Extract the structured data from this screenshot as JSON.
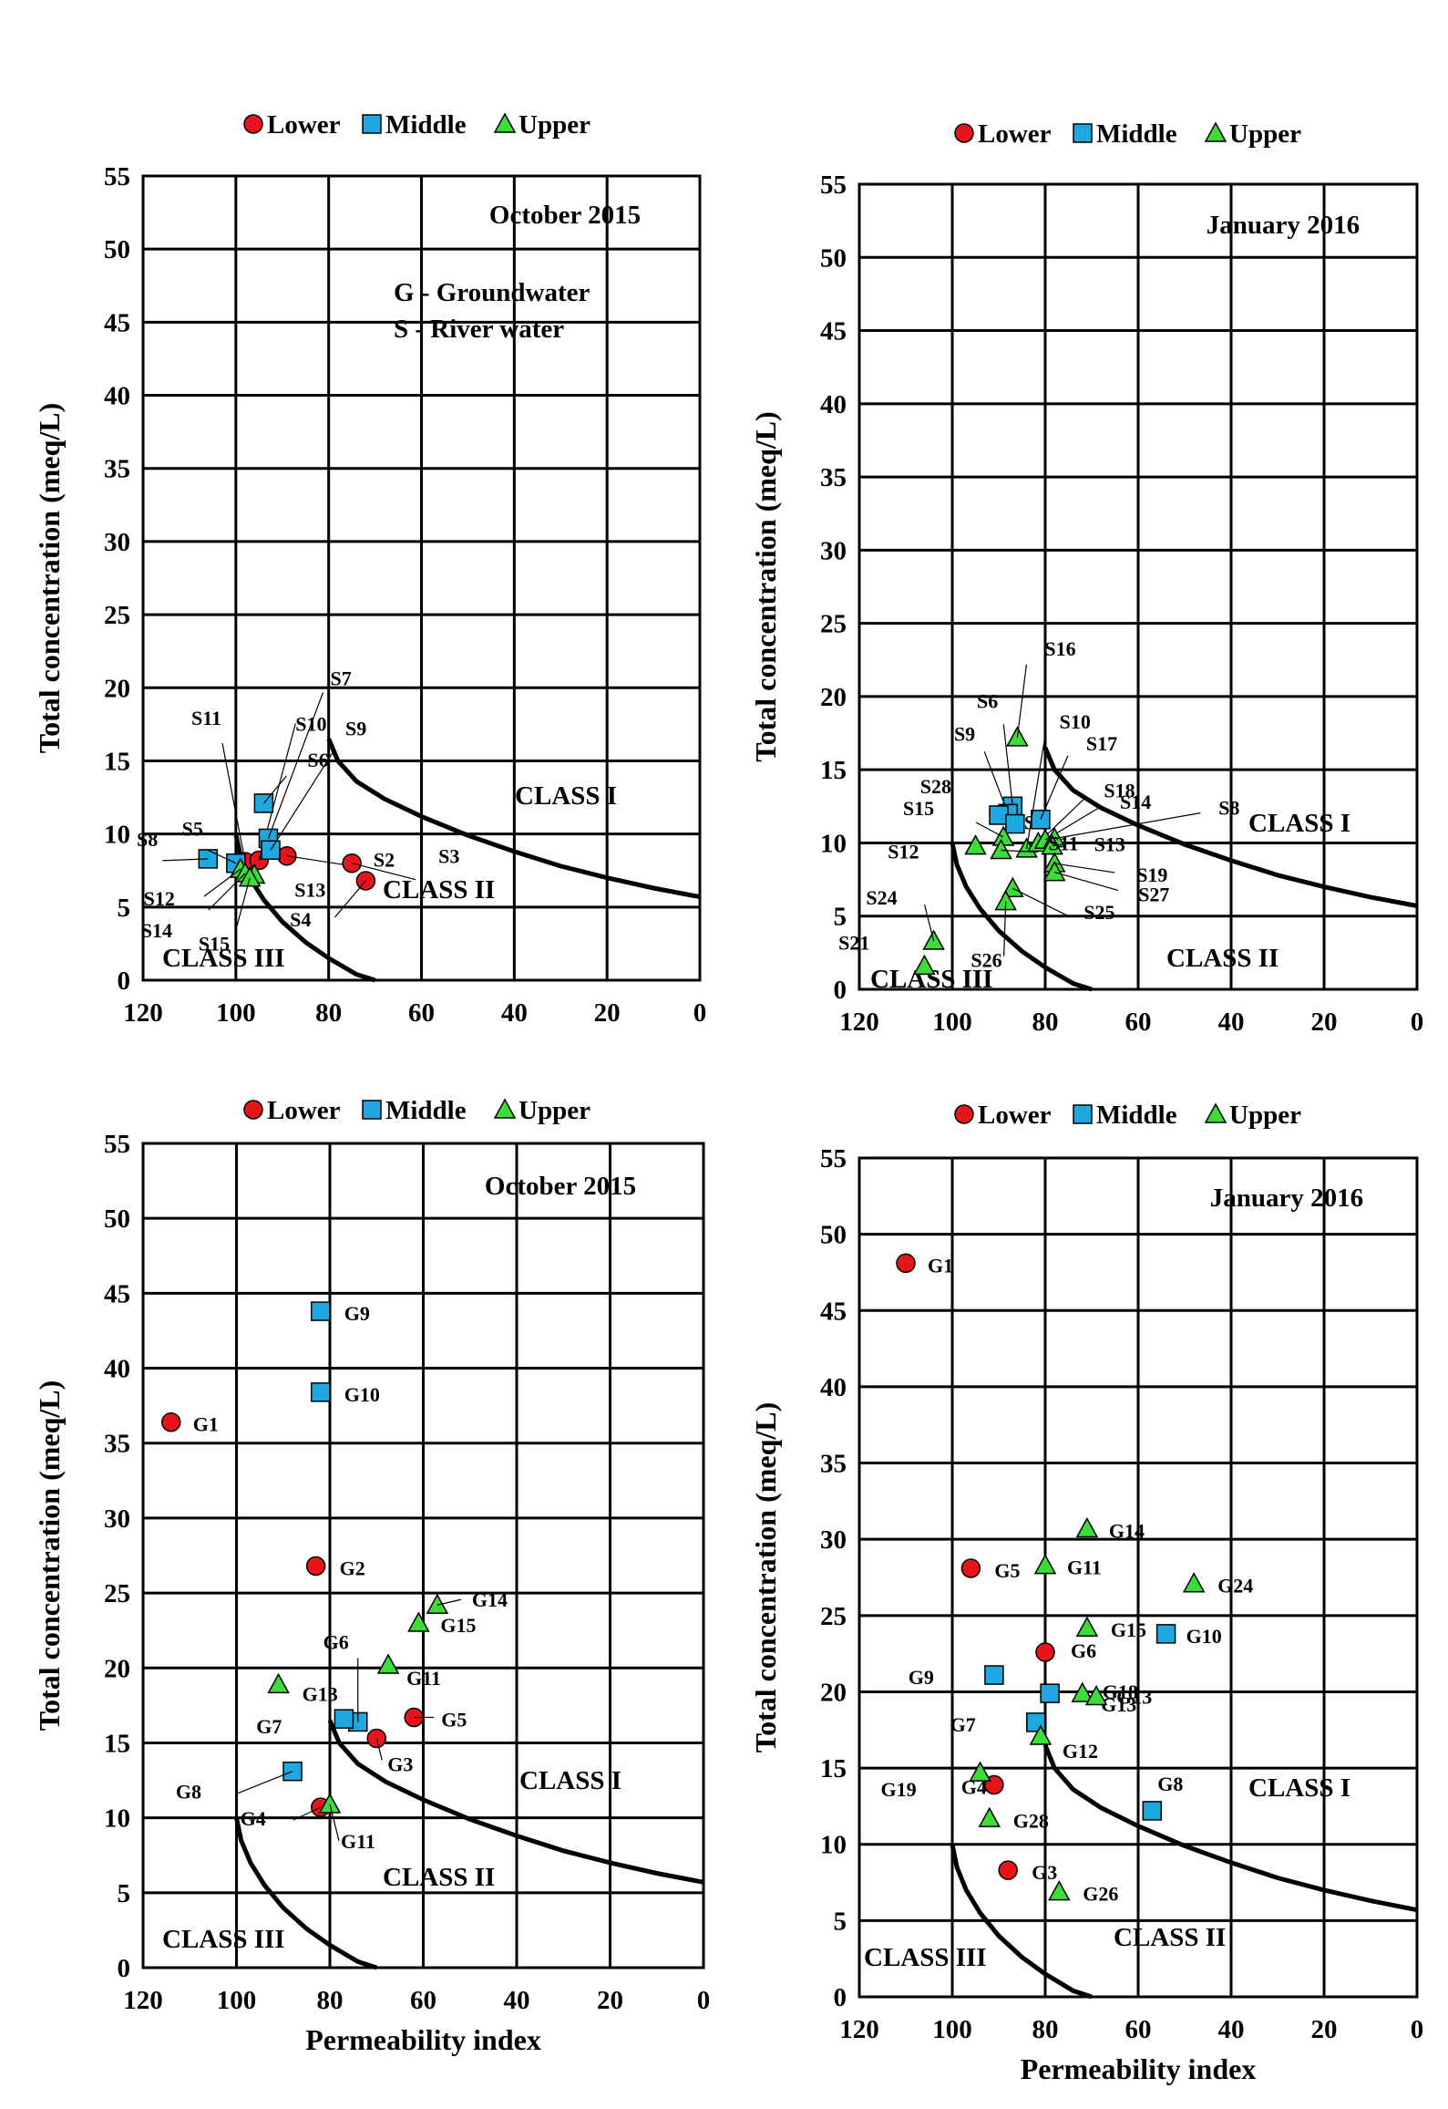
{
  "colors": {
    "Lower": "#e8141b",
    "Middle": "#1ea7e1",
    "Upper": "#3ddc39",
    "curve": "#000000",
    "grid": "#000000"
  },
  "legend": [
    {
      "name": "Lower",
      "marker": "circle"
    },
    {
      "name": "Middle",
      "marker": "square"
    },
    {
      "name": "Upper",
      "marker": "triangle"
    }
  ],
  "ylabel": "Total concentration (meq/L)",
  "xlabel": "Permeability index",
  "class_labels": [
    "CLASS I",
    "CLASS II",
    "CLASS III"
  ],
  "chart_data": [
    {
      "type": "scatter",
      "title": "October 2015",
      "notes": [
        "G - Groundwater",
        "S - River water"
      ],
      "xlim": [
        120,
        0
      ],
      "ylim": [
        0,
        55
      ],
      "xticks": [
        120,
        100,
        80,
        60,
        40,
        20,
        0
      ],
      "yticks": [
        0,
        5,
        10,
        15,
        20,
        25,
        30,
        35,
        40,
        45,
        50,
        55
      ],
      "xlabel": "",
      "ylabel": "Total concentration (meq/L)",
      "series": [
        {
          "name": "Lower",
          "points": [
            {
              "label": "S2",
              "x": 89,
              "y": 8.5
            },
            {
              "label": "S3",
              "x": 75,
              "y": 8.0
            },
            {
              "label": "S4",
              "x": 72,
              "y": 6.8
            },
            {
              "label": "S11",
              "x": 98,
              "y": 8.1
            },
            {
              "label": "S10",
              "x": 95,
              "y": 8.2
            }
          ]
        },
        {
          "name": "Middle",
          "points": [
            {
              "label": "S8",
              "x": 106,
              "y": 8.3
            },
            {
              "label": "S5",
              "x": 100,
              "y": 8.0
            },
            {
              "label": "S6",
              "x": 94,
              "y": 12.1
            },
            {
              "label": "S7",
              "x": 93,
              "y": 9.7
            },
            {
              "label": "S9",
              "x": 92.5,
              "y": 8.9
            }
          ]
        },
        {
          "name": "Upper",
          "points": [
            {
              "label": "S12",
              "x": 99,
              "y": 7.6
            },
            {
              "label": "S13",
              "x": 96,
              "y": 7.2
            },
            {
              "label": "S14",
              "x": 98,
              "y": 7.3
            },
            {
              "label": "S15",
              "x": 97,
              "y": 7.0
            }
          ]
        }
      ]
    },
    {
      "type": "scatter",
      "title": "January 2016",
      "xlim": [
        120,
        0
      ],
      "ylim": [
        0,
        55
      ],
      "xticks": [
        120,
        100,
        80,
        60,
        40,
        20,
        0
      ],
      "yticks": [
        0,
        5,
        10,
        15,
        20,
        25,
        30,
        35,
        40,
        45,
        50,
        55
      ],
      "xlabel": "",
      "ylabel": "Total concentration (meq/L)",
      "series": [
        {
          "name": "Lower",
          "points": []
        },
        {
          "name": "Middle",
          "points": [
            {
              "label": "S6",
              "x": 87,
              "y": 12.5
            },
            {
              "label": "S9",
              "x": 88,
              "y": 12.0
            },
            {
              "label": "S28",
              "x": 90,
              "y": 11.9
            },
            {
              "label": "S7",
              "x": 86.5,
              "y": 11.3
            },
            {
              "label": "S17",
              "x": 81,
              "y": 11.6
            }
          ]
        },
        {
          "name": "Upper",
          "points": [
            {
              "label": "S16",
              "x": 86,
              "y": 17.2
            },
            {
              "label": "S10",
              "x": 84,
              "y": 9.6
            },
            {
              "label": "S18",
              "x": 81.5,
              "y": 10.0
            },
            {
              "label": "S14",
              "x": 80,
              "y": 10.2
            },
            {
              "label": "S8",
              "x": 78,
              "y": 10.3
            },
            {
              "label": "S13",
              "x": 78.5,
              "y": 9.8
            },
            {
              "label": "S19",
              "x": 78,
              "y": 8.6
            },
            {
              "label": "S27",
              "x": 78,
              "y": 8.0
            },
            {
              "label": "S15",
              "x": 89,
              "y": 10.4
            },
            {
              "label": "S12",
              "x": 95,
              "y": 9.8
            },
            {
              "label": "S11",
              "x": 89.5,
              "y": 9.5
            },
            {
              "label": "S25",
              "x": 87,
              "y": 6.9
            },
            {
              "label": "S26",
              "x": 88.5,
              "y": 6.0
            },
            {
              "label": "S24",
              "x": 104,
              "y": 3.3
            },
            {
              "label": "S21",
              "x": 106,
              "y": 1.6
            }
          ]
        }
      ]
    },
    {
      "type": "scatter",
      "title": "October 2015",
      "xlim": [
        120,
        0
      ],
      "ylim": [
        0,
        55
      ],
      "xticks": [
        120,
        100,
        80,
        60,
        40,
        20,
        0
      ],
      "yticks": [
        0,
        5,
        10,
        15,
        20,
        25,
        30,
        35,
        40,
        45,
        50,
        55
      ],
      "xlabel": "Permeability index",
      "ylabel": "Total concentration (meq/L)",
      "series": [
        {
          "name": "Lower",
          "points": [
            {
              "label": "G1",
              "x": 114,
              "y": 36.4
            },
            {
              "label": "G2",
              "x": 83,
              "y": 26.8
            },
            {
              "label": "G3",
              "x": 70,
              "y": 15.3
            },
            {
              "label": "G4",
              "x": 82,
              "y": 10.7
            },
            {
              "label": "G5",
              "x": 62,
              "y": 16.7
            }
          ]
        },
        {
          "name": "Middle",
          "points": [
            {
              "label": "G9",
              "x": 82,
              "y": 43.8
            },
            {
              "label": "G10",
              "x": 82,
              "y": 38.4
            },
            {
              "label": "G6",
              "x": 74,
              "y": 16.4
            },
            {
              "label": "G7",
              "x": 77,
              "y": 16.6
            },
            {
              "label": "G8",
              "x": 88,
              "y": 13.1
            }
          ]
        },
        {
          "name": "Upper",
          "points": [
            {
              "label": "G13",
              "x": 91,
              "y": 18.9
            },
            {
              "label": "G11",
              "x": 67.5,
              "y": 20.2
            },
            {
              "label": "G11",
              "x": 80,
              "y": 10.9
            },
            {
              "label": "G15",
              "x": 61,
              "y": 23.0
            },
            {
              "label": "G14",
              "x": 57,
              "y": 24.2
            }
          ]
        }
      ]
    },
    {
      "type": "scatter",
      "title": "January 2016",
      "xlim": [
        120,
        0
      ],
      "ylim": [
        0,
        55
      ],
      "xticks": [
        120,
        100,
        80,
        60,
        40,
        20,
        0
      ],
      "yticks": [
        0,
        5,
        10,
        15,
        20,
        25,
        30,
        35,
        40,
        45,
        50,
        55
      ],
      "xlabel": "Permeability index",
      "ylabel": "Total concentration (meq/L)",
      "series": [
        {
          "name": "Lower",
          "points": [
            {
              "label": "G1",
              "x": 110,
              "y": 48.1
            },
            {
              "label": "G5",
              "x": 96,
              "y": 28.1
            },
            {
              "label": "G6",
              "x": 80,
              "y": 22.6
            },
            {
              "label": "G4",
              "x": 91,
              "y": 13.9
            },
            {
              "label": "G3",
              "x": 88,
              "y": 8.3
            }
          ]
        },
        {
          "name": "Middle",
          "points": [
            {
              "label": "G9",
              "x": 91,
              "y": 21.1
            },
            {
              "label": "G10",
              "x": 54,
              "y": 23.8
            },
            {
              "label": "G7",
              "x": 82,
              "y": 18.0
            },
            {
              "label": "G8",
              "x": 57,
              "y": 12.2
            },
            {
              "label": "G13",
              "x": 79,
              "y": 19.9
            }
          ]
        },
        {
          "name": "Upper",
          "points": [
            {
              "label": "G14",
              "x": 71,
              "y": 30.7
            },
            {
              "label": "G11",
              "x": 80,
              "y": 28.3
            },
            {
              "label": "G24",
              "x": 48,
              "y": 27.1
            },
            {
              "label": "G15",
              "x": 71,
              "y": 24.2
            },
            {
              "label": "G18",
              "x": 72,
              "y": 19.9
            },
            {
              "label": "G13",
              "x": 69,
              "y": 19.7
            },
            {
              "label": "G12",
              "x": 81,
              "y": 17.1
            },
            {
              "label": "G19",
              "x": 94,
              "y": 14.7
            },
            {
              "label": "G28",
              "x": 92,
              "y": 11.7
            },
            {
              "label": "G26",
              "x": 77,
              "y": 6.9
            }
          ]
        }
      ]
    }
  ]
}
